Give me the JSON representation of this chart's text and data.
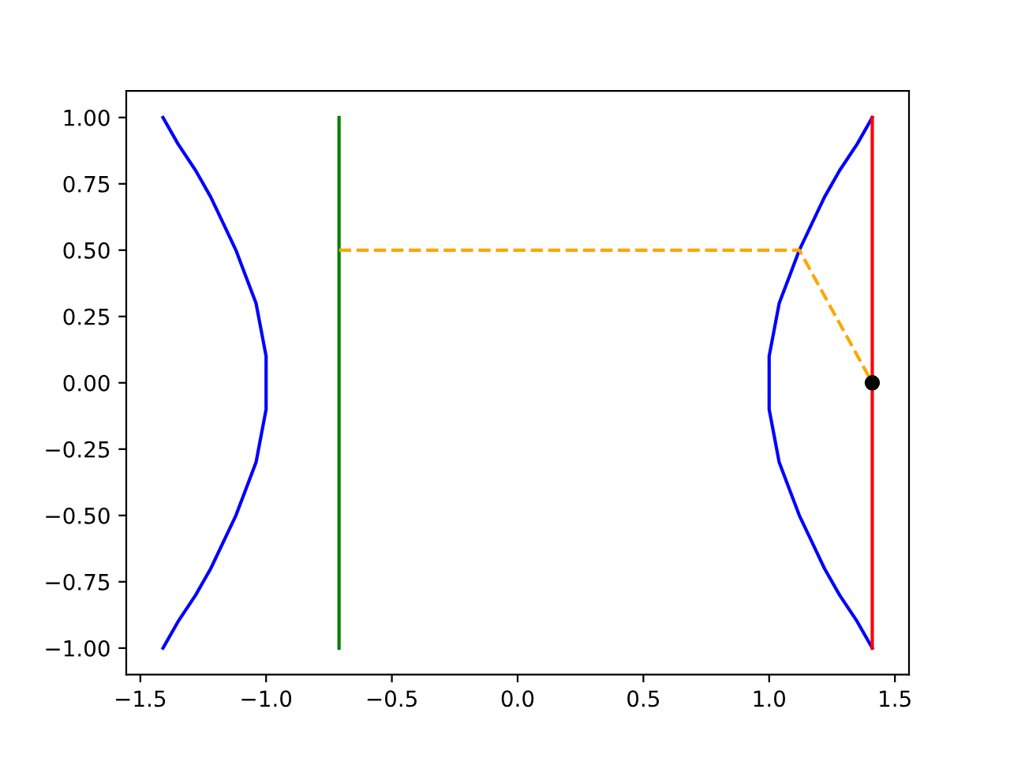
{
  "chart_data": {
    "type": "line",
    "xlim": [
      -1.556,
      1.556
    ],
    "ylim": [
      -1.1,
      1.1
    ],
    "xticks": [
      {
        "value": -1.5,
        "label": "−1.5"
      },
      {
        "value": -1.0,
        "label": "−1.0"
      },
      {
        "value": -0.5,
        "label": "−0.5"
      },
      {
        "value": 0.0,
        "label": "0.0"
      },
      {
        "value": 0.5,
        "label": "0.5"
      },
      {
        "value": 1.0,
        "label": "1.0"
      },
      {
        "value": 1.5,
        "label": "1.5"
      }
    ],
    "yticks": [
      {
        "value": -1.0,
        "label": "−1.00"
      },
      {
        "value": -0.75,
        "label": "−0.75"
      },
      {
        "value": -0.5,
        "label": "−0.50"
      },
      {
        "value": -0.25,
        "label": "−0.25"
      },
      {
        "value": 0.0,
        "label": "0.00"
      },
      {
        "value": 0.25,
        "label": "0.25"
      },
      {
        "value": 0.5,
        "label": "0.50"
      },
      {
        "value": 0.75,
        "label": "0.75"
      },
      {
        "value": 1.0,
        "label": "1.00"
      }
    ],
    "grid": false,
    "series": [
      {
        "color": "#0000ff",
        "line_style": "solid",
        "x": [
          -1.41,
          -1.35,
          -1.28,
          -1.22,
          -1.17,
          -1.12,
          -1.08,
          -1.04,
          -1.02,
          -1.0,
          -1.0,
          -1.0,
          -1.02,
          -1.04,
          -1.08,
          -1.12,
          -1.17,
          -1.22,
          -1.28,
          -1.35,
          -1.41
        ],
        "values": [
          -1.0,
          -0.9,
          -0.8,
          -0.7,
          -0.6,
          -0.5,
          -0.4,
          -0.3,
          -0.2,
          -0.1,
          0.0,
          0.1,
          0.2,
          0.3,
          0.4,
          0.5,
          0.6,
          0.7,
          0.8,
          0.9,
          1.0
        ]
      },
      {
        "color": "#0000ff",
        "line_style": "solid",
        "x": [
          1.41,
          1.35,
          1.28,
          1.22,
          1.17,
          1.12,
          1.08,
          1.04,
          1.02,
          1.0,
          1.0,
          1.0,
          1.02,
          1.04,
          1.08,
          1.12,
          1.17,
          1.22,
          1.28,
          1.35,
          1.41
        ],
        "values": [
          -1.0,
          -0.9,
          -0.8,
          -0.7,
          -0.6,
          -0.5,
          -0.4,
          -0.3,
          -0.2,
          -0.1,
          0.0,
          0.1,
          0.2,
          0.3,
          0.4,
          0.5,
          0.6,
          0.7,
          0.8,
          0.9,
          1.0
        ]
      },
      {
        "color": "#008000",
        "line_style": "solid",
        "x": [
          -0.71,
          -0.71
        ],
        "values": [
          -1.0,
          1.0
        ]
      },
      {
        "color": "#ff0000",
        "line_style": "solid",
        "x": [
          1.41,
          1.41
        ],
        "values": [
          -1.0,
          1.0
        ]
      },
      {
        "color": "#ffa500",
        "line_style": "dashed",
        "x": [
          -0.71,
          1.12,
          1.41
        ],
        "values": [
          0.5,
          0.5,
          0.0
        ]
      },
      {
        "type": "scatter",
        "color": "#000000",
        "marker": "circle",
        "x": [
          1.41
        ],
        "values": [
          0.0
        ]
      }
    ]
  }
}
